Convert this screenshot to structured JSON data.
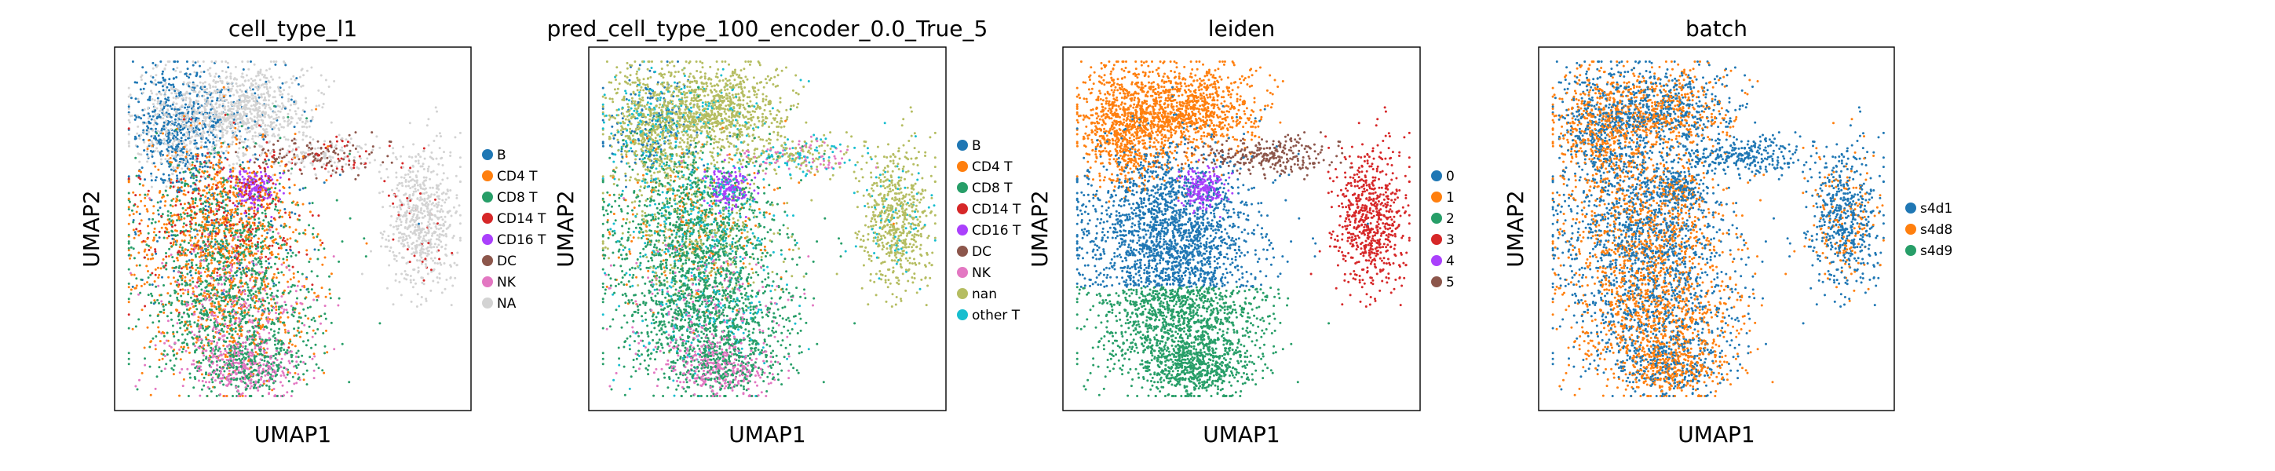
{
  "chart_data": [
    {
      "type": "scatter",
      "title": "cell_type_l1",
      "xlabel": "UMAP1",
      "ylabel": "UMAP2",
      "grid": false,
      "legend_position": "right",
      "categories": [
        {
          "name": "B",
          "color": "#1f77b4"
        },
        {
          "name": "CD4 T",
          "color": "#ff7f0e"
        },
        {
          "name": "CD8 T",
          "color": "#279e68"
        },
        {
          "name": "CD14 T",
          "color": "#d62728"
        },
        {
          "name": "CD16 T",
          "color": "#aa40fc"
        },
        {
          "name": "DC",
          "color": "#8c564b"
        },
        {
          "name": "NK",
          "color": "#e377c2"
        },
        {
          "name": "NA",
          "color": "#d3d3d3"
        }
      ]
    },
    {
      "type": "scatter",
      "title": "pred_cell_type_100_encoder_0.0_True_5",
      "xlabel": "UMAP1",
      "ylabel": "UMAP2",
      "grid": false,
      "legend_position": "right",
      "categories": [
        {
          "name": "B",
          "color": "#1f77b4"
        },
        {
          "name": "CD4 T",
          "color": "#ff7f0e"
        },
        {
          "name": "CD8 T",
          "color": "#279e68"
        },
        {
          "name": "CD14 T",
          "color": "#d62728"
        },
        {
          "name": "CD16 T",
          "color": "#aa40fc"
        },
        {
          "name": "DC",
          "color": "#8c564b"
        },
        {
          "name": "NK",
          "color": "#e377c2"
        },
        {
          "name": "nan",
          "color": "#b5bd61"
        },
        {
          "name": "other T",
          "color": "#17becf"
        }
      ]
    },
    {
      "type": "scatter",
      "title": "leiden",
      "xlabel": "UMAP1",
      "ylabel": "UMAP2",
      "grid": false,
      "legend_position": "right",
      "categories": [
        {
          "name": "0",
          "color": "#1f77b4"
        },
        {
          "name": "1",
          "color": "#ff7f0e"
        },
        {
          "name": "2",
          "color": "#279e68"
        },
        {
          "name": "3",
          "color": "#d62728"
        },
        {
          "name": "4",
          "color": "#aa40fc"
        },
        {
          "name": "5",
          "color": "#8c564b"
        }
      ]
    },
    {
      "type": "scatter",
      "title": "batch",
      "xlabel": "UMAP1",
      "ylabel": "UMAP2",
      "grid": false,
      "legend_position": "right",
      "categories": [
        {
          "name": "s4d1",
          "color": "#1f77b4"
        },
        {
          "name": "s4d8",
          "color": "#ff7f0e"
        },
        {
          "name": "s4d9",
          "color": "#279e68"
        }
      ]
    }
  ]
}
